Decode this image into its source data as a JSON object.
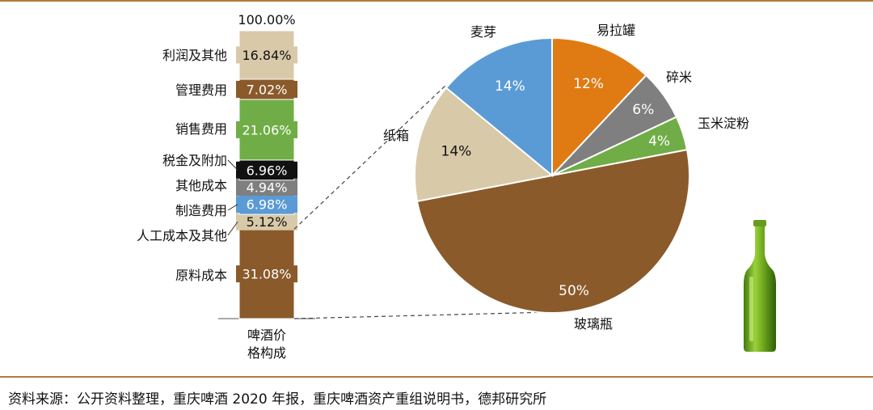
{
  "chart_data": [
    {
      "type": "bar",
      "stacked": true,
      "category": "啤酒价\n格构成",
      "top_label": "100.00%",
      "segments": [
        {
          "name": "原料成本",
          "value": 31.08,
          "label": "31.08%",
          "color": "#8a5a2b"
        },
        {
          "name": "人工成本及其他",
          "value": 5.12,
          "label": "5.12%",
          "color": "#d8c9a8"
        },
        {
          "name": "制造费用",
          "value": 6.98,
          "label": "6.98%",
          "color": "#5b9bd5"
        },
        {
          "name": "其他成本",
          "value": 4.94,
          "label": "4.94%",
          "color": "#7f7f7f"
        },
        {
          "name": "税金及附加",
          "value": 6.96,
          "label": "6.96%",
          "color": "#111111"
        },
        {
          "name": "销售费用",
          "value": 21.06,
          "label": "21.06%",
          "color": "#70ad47"
        },
        {
          "name": "管理费用",
          "value": 7.02,
          "label": "7.02%",
          "color": "#8a5a2b"
        },
        {
          "name": "利润及其他",
          "value": 16.84,
          "label": "16.84%",
          "color": "#d8c9a8"
        }
      ]
    },
    {
      "type": "pie",
      "slices": [
        {
          "name": "易拉罐",
          "value": 12,
          "label": "12%",
          "color": "#e07b13"
        },
        {
          "name": "碎米",
          "value": 6,
          "label": "6%",
          "color": "#7f7f7f"
        },
        {
          "name": "玉米淀粉",
          "value": 4,
          "label": "4%",
          "color": "#70ad47"
        },
        {
          "name": "玻璃瓶",
          "value": 50,
          "label": "50%",
          "color": "#8a5a2b"
        },
        {
          "name": "纸箱",
          "value": 14,
          "label": "14%",
          "color": "#d8c9a8"
        },
        {
          "name": "麦芽",
          "value": 14,
          "label": "14%",
          "color": "#5b9bd5"
        }
      ]
    }
  ],
  "footer": {
    "source": "资料来源：公开资料整理，重庆啤酒 2020 年报，重庆啤酒资产重组说明书，德邦研究所"
  },
  "colors": {
    "rule": "#b07a3c",
    "bottle": "#6fa81e"
  }
}
